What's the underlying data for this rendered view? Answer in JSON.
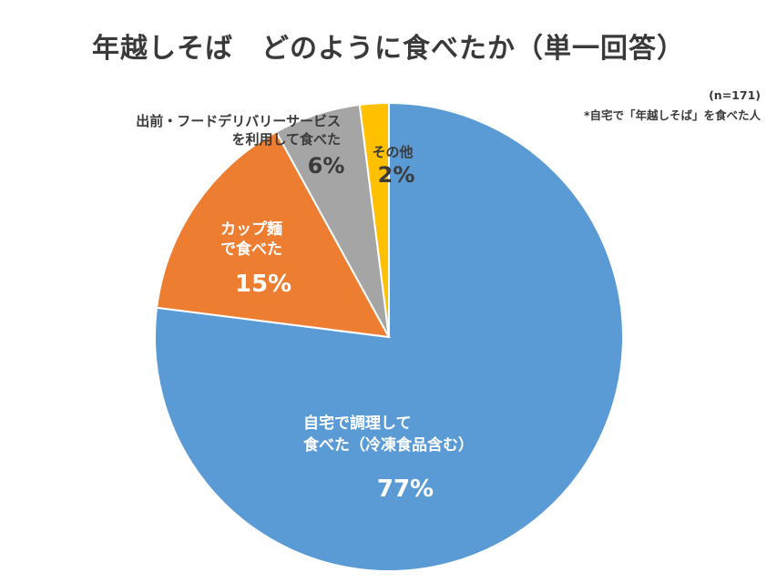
{
  "title": "年越しそば　どのように食べたか（単一回答）",
  "sample_note": "(n=171)",
  "subject_note": "*自宅で「年越しそば」を食べた人",
  "chart_data": {
    "type": "pie",
    "title": "年越しそば　どのように食べたか（単一回答）",
    "unit": "%",
    "start": "12 o'clock, clockwise",
    "slices": [
      {
        "label_lines": [
          "自宅で調理して",
          "食べた（冷凍食品含む）"
        ],
        "value": 77,
        "value_label": "77%",
        "color": "#5b9bd5",
        "text_color": "#ffffff"
      },
      {
        "label_lines": [
          "カップ麺",
          "で食べた"
        ],
        "value": 15,
        "value_label": "15%",
        "color": "#ed7d31",
        "text_color": "#ffffff"
      },
      {
        "label_lines": [
          "出前・フードデリバリーサービス",
          "を利用して食べた"
        ],
        "value": 6,
        "value_label": "6%",
        "color": "#a5a5a5",
        "text_color": "#3a3a3a"
      },
      {
        "label_lines": [
          "その他"
        ],
        "value": 2,
        "value_label": "2%",
        "color": "#ffc000",
        "text_color": "#3a3a3a"
      }
    ]
  }
}
